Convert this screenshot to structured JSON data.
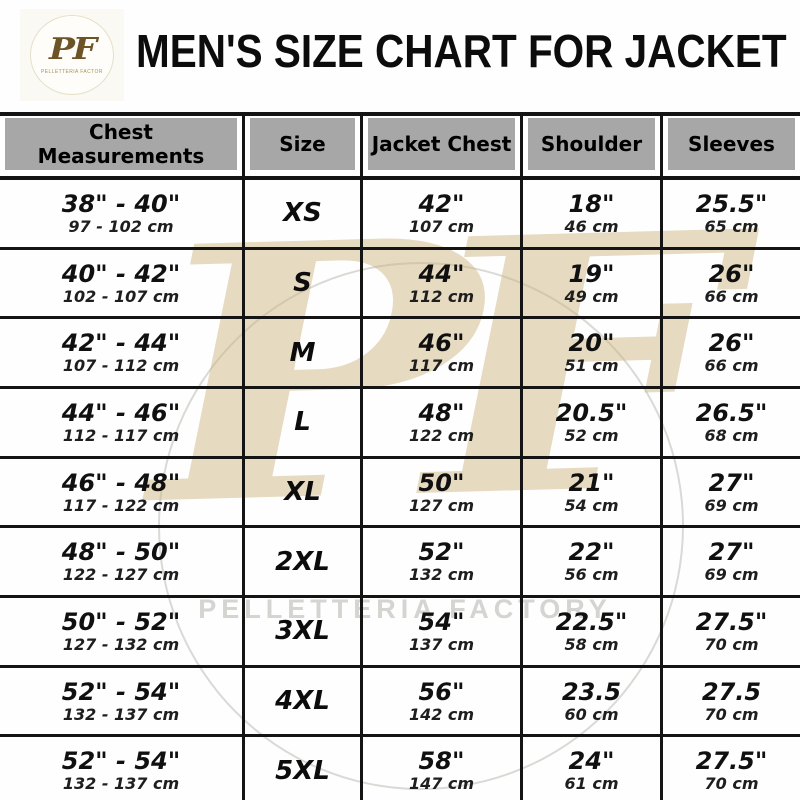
{
  "header": {
    "logo": {
      "monogram": "PF",
      "subtext": "PELLETTERIA FACTORY"
    },
    "title": "MEN'S SIZE CHART FOR JACKET"
  },
  "watermark": {
    "monogram": "PF",
    "text": "PELLETTERIA FACTORY"
  },
  "table": {
    "columns": [
      "Chest Measurements",
      "Size",
      "Jacket Chest",
      "Shoulder",
      "Sleeves"
    ],
    "rows": [
      {
        "chest_in": "38\" - 40\"",
        "chest_cm": "97 - 102 cm",
        "size": "XS",
        "jacket_in": "42\"",
        "jacket_cm": "107 cm",
        "shoulder_in": "18\"",
        "shoulder_cm": "46 cm",
        "sleeves_in": "25.5\"",
        "sleeves_cm": "65 cm"
      },
      {
        "chest_in": "40\" - 42\"",
        "chest_cm": "102 - 107 cm",
        "size": "S",
        "jacket_in": "44\"",
        "jacket_cm": "112 cm",
        "shoulder_in": "19\"",
        "shoulder_cm": "49 cm",
        "sleeves_in": "26\"",
        "sleeves_cm": "66 cm"
      },
      {
        "chest_in": "42\" - 44\"",
        "chest_cm": "107 - 112 cm",
        "size": "M",
        "jacket_in": "46\"",
        "jacket_cm": "117 cm",
        "shoulder_in": "20\"",
        "shoulder_cm": "51 cm",
        "sleeves_in": "26\"",
        "sleeves_cm": "66 cm"
      },
      {
        "chest_in": "44\" - 46\"",
        "chest_cm": "112 - 117 cm",
        "size": "L",
        "jacket_in": "48\"",
        "jacket_cm": "122 cm",
        "shoulder_in": "20.5\"",
        "shoulder_cm": "52 cm",
        "sleeves_in": "26.5\"",
        "sleeves_cm": "68 cm"
      },
      {
        "chest_in": "46\" - 48\"",
        "chest_cm": "117 - 122 cm",
        "size": "XL",
        "jacket_in": "50\"",
        "jacket_cm": "127 cm",
        "shoulder_in": "21\"",
        "shoulder_cm": "54 cm",
        "sleeves_in": "27\"",
        "sleeves_cm": "69 cm"
      },
      {
        "chest_in": "48\" - 50\"",
        "chest_cm": "122 - 127 cm",
        "size": "2XL",
        "jacket_in": "52\"",
        "jacket_cm": "132 cm",
        "shoulder_in": "22\"",
        "shoulder_cm": "56 cm",
        "sleeves_in": "27\"",
        "sleeves_cm": "69 cm"
      },
      {
        "chest_in": "50\" - 52\"",
        "chest_cm": "127 - 132 cm",
        "size": "3XL",
        "jacket_in": "54\"",
        "jacket_cm": "137 cm",
        "shoulder_in": "22.5\"",
        "shoulder_cm": "58 cm",
        "sleeves_in": "27.5\"",
        "sleeves_cm": "70 cm"
      },
      {
        "chest_in": "52\" - 54\"",
        "chest_cm": "132 - 137 cm",
        "size": "4XL",
        "jacket_in": "56\"",
        "jacket_cm": "142 cm",
        "shoulder_in": "23.5",
        "shoulder_cm": "60 cm",
        "sleeves_in": "27.5",
        "sleeves_cm": "70 cm"
      },
      {
        "chest_in": "52\" - 54\"",
        "chest_cm": "132 - 137 cm",
        "size": "5XL",
        "jacket_in": "58\"",
        "jacket_cm": "147 cm",
        "shoulder_in": "24\"",
        "shoulder_cm": "61 cm",
        "sleeves_in": "27.5\"",
        "sleeves_cm": "70 cm"
      }
    ]
  },
  "chart_data": {
    "type": "table",
    "title": "MEN'S SIZE CHART FOR JACKET",
    "columns": [
      "Chest Measurements",
      "Size",
      "Jacket Chest",
      "Shoulder",
      "Sleeves"
    ],
    "rows": [
      [
        "38\" - 40\" (97 - 102 cm)",
        "XS",
        "42\" (107 cm)",
        "18\" (46 cm)",
        "25.5\" (65 cm)"
      ],
      [
        "40\" - 42\" (102 - 107 cm)",
        "S",
        "44\" (112 cm)",
        "19\" (49 cm)",
        "26\" (66 cm)"
      ],
      [
        "42\" - 44\" (107 - 112 cm)",
        "M",
        "46\" (117 cm)",
        "20\" (51 cm)",
        "26\" (66 cm)"
      ],
      [
        "44\" - 46\" (112 - 117 cm)",
        "L",
        "48\" (122 cm)",
        "20.5\" (52 cm)",
        "26.5\" (68 cm)"
      ],
      [
        "46\" - 48\" (117 - 122 cm)",
        "XL",
        "50\" (127 cm)",
        "21\" (54 cm)",
        "27\" (69 cm)"
      ],
      [
        "48\" - 50\" (122 - 127 cm)",
        "2XL",
        "52\" (132 cm)",
        "22\" (56 cm)",
        "27\" (69 cm)"
      ],
      [
        "50\" - 52\" (127 - 132 cm)",
        "3XL",
        "54\" (137 cm)",
        "22.5\" (58 cm)",
        "27.5\" (70 cm)"
      ],
      [
        "52\" - 54\" (132 - 137 cm)",
        "4XL",
        "56\" (142 cm)",
        "23.5 (60 cm)",
        "27.5 (70 cm)"
      ],
      [
        "52\" - 54\" (132 - 137 cm)",
        "5XL",
        "58\" (147 cm)",
        "24\" (61 cm)",
        "27.5\" (70 cm)"
      ]
    ]
  },
  "colors": {
    "header_bg": "#a7a7a7",
    "border": "#141414",
    "watermark_tan": "#cdb684",
    "logo_gold": "#6d5426"
  }
}
